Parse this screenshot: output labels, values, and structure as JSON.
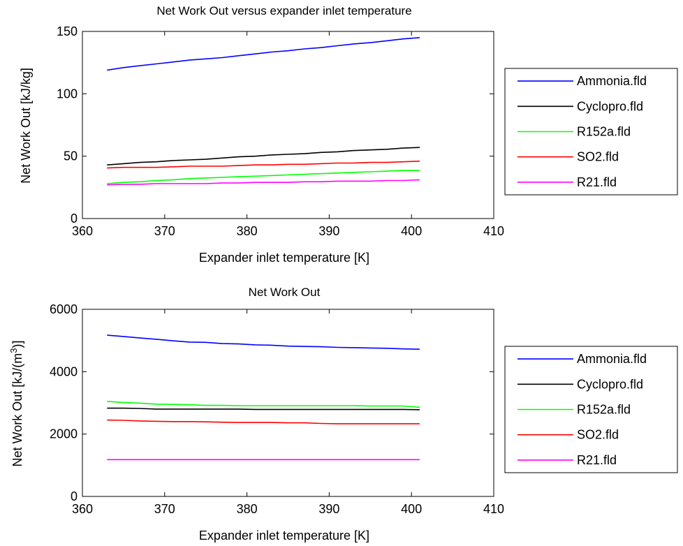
{
  "chart_data": [
    {
      "type": "line",
      "title": "Net Work Out versus expander inlet temperature",
      "xlabel": "Expander inlet temperature [K]",
      "ylabel": "Net Work Out [kJ/kg]",
      "xlim": [
        360,
        410
      ],
      "ylim": [
        0,
        150
      ],
      "xticks": [
        "360",
        "370",
        "380",
        "390",
        "400",
        "410"
      ],
      "yticks": [
        "0",
        "50",
        "100",
        "150"
      ],
      "legend_position": "outside-right",
      "grid": false,
      "x": [
        363,
        365,
        367,
        369,
        371,
        373,
        375,
        377,
        379,
        381,
        383,
        385,
        387,
        389,
        391,
        393,
        395,
        397,
        399,
        401
      ],
      "series": [
        {
          "name": "Ammonia.fld",
          "color": "#0000ff",
          "values": [
            119,
            121,
            122.5,
            124,
            125.5,
            127,
            128,
            129,
            130.5,
            132,
            133.5,
            134.5,
            136,
            137,
            138.5,
            140,
            141,
            142.5,
            144,
            145
          ]
        },
        {
          "name": "Cyclopro.fld",
          "color": "#000000",
          "values": [
            43,
            44,
            45,
            45.5,
            46.5,
            47,
            47.5,
            48.5,
            49.5,
            50,
            51,
            51.5,
            52,
            53,
            53.5,
            54.5,
            55,
            55.5,
            56.5,
            57
          ]
        },
        {
          "name": "R152a.fld",
          "color": "#00ff00",
          "values": [
            28,
            29,
            29.5,
            30.5,
            31,
            32,
            32.5,
            33,
            33.5,
            34,
            34.5,
            35,
            35.5,
            36,
            36.5,
            37,
            37.5,
            38,
            38.5,
            38.5
          ]
        },
        {
          "name": "SO2.fld",
          "color": "#ff0000",
          "values": [
            40.5,
            41,
            41,
            41,
            41.5,
            42,
            42,
            42,
            42.5,
            43,
            43,
            43.5,
            43.5,
            44,
            44.5,
            44.5,
            45,
            45,
            45.5,
            46
          ]
        },
        {
          "name": "R21.fld",
          "color": "#ff00ff",
          "values": [
            27,
            27.5,
            27.5,
            28,
            28,
            28,
            28,
            28.5,
            28.5,
            29,
            29,
            29,
            29.5,
            29.5,
            30,
            30,
            30,
            30.5,
            30.5,
            31
          ]
        }
      ]
    },
    {
      "type": "line",
      "title": "Net Work Out",
      "xlabel": "Expander inlet temperature [K]",
      "ylabel": "Net Work Out [kJ/(m",
      "ylabel_superscript": "3",
      "ylabel_suffix": ")]",
      "xlim": [
        360,
        410
      ],
      "ylim": [
        0,
        6000
      ],
      "xticks": [
        "360",
        "370",
        "380",
        "390",
        "400",
        "410"
      ],
      "yticks": [
        "0",
        "2000",
        "4000",
        "6000"
      ],
      "legend_position": "outside-right",
      "grid": false,
      "x": [
        363,
        365,
        367,
        369,
        371,
        373,
        375,
        377,
        379,
        381,
        383,
        385,
        387,
        389,
        391,
        393,
        395,
        397,
        399,
        401
      ],
      "series": [
        {
          "name": "Ammonia.fld",
          "color": "#0000ff",
          "values": [
            5170,
            5130,
            5080,
            5040,
            4990,
            4950,
            4940,
            4900,
            4890,
            4860,
            4850,
            4820,
            4810,
            4800,
            4780,
            4770,
            4760,
            4750,
            4730,
            4720
          ]
        },
        {
          "name": "Cyclopro.fld",
          "color": "#000000",
          "values": [
            2830,
            2830,
            2820,
            2800,
            2800,
            2800,
            2800,
            2800,
            2800,
            2790,
            2790,
            2790,
            2790,
            2790,
            2790,
            2790,
            2790,
            2790,
            2790,
            2780
          ]
        },
        {
          "name": "R152a.fld",
          "color": "#00ff00",
          "values": [
            3050,
            3010,
            2990,
            2960,
            2950,
            2940,
            2920,
            2920,
            2910,
            2910,
            2910,
            2910,
            2910,
            2910,
            2910,
            2910,
            2900,
            2900,
            2900,
            2860
          ]
        },
        {
          "name": "SO2.fld",
          "color": "#ff0000",
          "values": [
            2450,
            2440,
            2420,
            2410,
            2400,
            2400,
            2390,
            2380,
            2370,
            2370,
            2370,
            2360,
            2360,
            2340,
            2330,
            2330,
            2330,
            2330,
            2330,
            2330
          ]
        },
        {
          "name": "R21.fld",
          "color": "#ff00ff",
          "values": [
            1180,
            1180,
            1180,
            1180,
            1180,
            1180,
            1180,
            1180,
            1180,
            1180,
            1180,
            1180,
            1180,
            1180,
            1180,
            1180,
            1180,
            1180,
            1180,
            1180
          ]
        }
      ]
    }
  ]
}
